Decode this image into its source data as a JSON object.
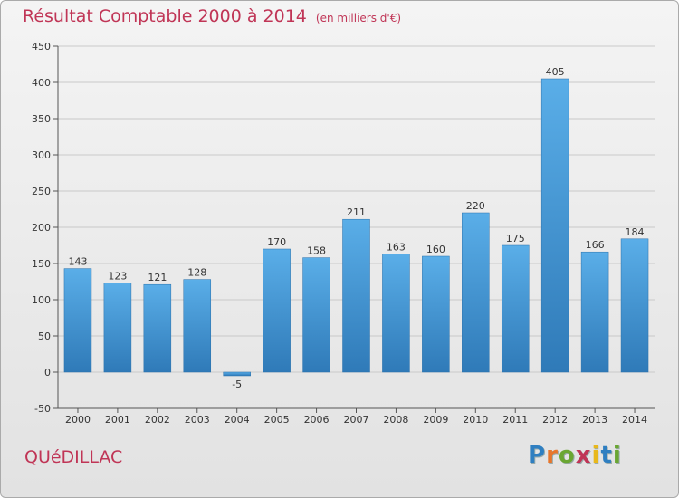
{
  "header": {
    "title": "Résultat Comptable 2000 à 2014",
    "subtitle": "(en milliers d'€)"
  },
  "footer": {
    "place": "QUéDILLAC",
    "logo_text": "Proxiti",
    "logo_colors": [
      "#2f7fc1",
      "#e8762c",
      "#6aa632",
      "#c03556",
      "#e8b81c",
      "#2f7fc1",
      "#6aa632"
    ]
  },
  "colors": {
    "bar_light": "#5aaee8",
    "bar_dark": "#2f7ab8",
    "title": "#c03556"
  },
  "chart_data": {
    "type": "bar",
    "title": "Résultat Comptable 2000 à 2014",
    "subtitle": "(en milliers d'€)",
    "categories": [
      "2000",
      "2001",
      "2002",
      "2003",
      "2004",
      "2005",
      "2006",
      "2007",
      "2008",
      "2009",
      "2010",
      "2011",
      "2012",
      "2013",
      "2014"
    ],
    "values": [
      143,
      123,
      121,
      128,
      -5,
      170,
      158,
      211,
      163,
      160,
      220,
      175,
      405,
      166,
      184
    ],
    "value_labels": [
      "143",
      "123",
      "121",
      "128",
      "-5",
      "170",
      "158",
      "211",
      "163",
      "160",
      "220",
      "175",
      "405",
      "166",
      "184"
    ],
    "yticks": [
      -50,
      0,
      50,
      100,
      150,
      200,
      250,
      300,
      350,
      400,
      450
    ],
    "ytick_labels": [
      "-50",
      "0",
      "50",
      "100",
      "150",
      "200",
      "250",
      "300",
      "350",
      "400",
      "450"
    ],
    "ylim": [
      -50,
      450
    ],
    "xlabel": "",
    "ylabel": "",
    "grid": true,
    "legend": "none"
  }
}
